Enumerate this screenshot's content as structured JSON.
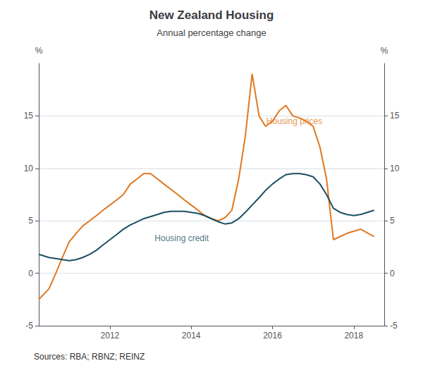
{
  "chart_data": {
    "type": "line",
    "title": "New Zealand Housing",
    "subtitle": "Annual percentage change",
    "y_label": "%",
    "y2_label": "%",
    "source": "Sources: RBA; RBNZ; REINZ",
    "x": [
      2010.25,
      2010.5,
      2010.67,
      2010.83,
      2011.0,
      2011.17,
      2011.33,
      2011.5,
      2011.67,
      2011.83,
      2012.0,
      2012.17,
      2012.33,
      2012.5,
      2012.67,
      2012.83,
      2013.0,
      2013.17,
      2013.33,
      2013.5,
      2013.67,
      2013.83,
      2014.0,
      2014.17,
      2014.33,
      2014.5,
      2014.67,
      2014.83,
      2015.0,
      2015.17,
      2015.33,
      2015.5,
      2015.67,
      2015.83,
      2016.0,
      2016.17,
      2016.33,
      2016.5,
      2016.67,
      2016.83,
      2017.0,
      2017.17,
      2017.33,
      2017.5,
      2017.67,
      2017.83,
      2018.0,
      2018.17,
      2018.5
    ],
    "series": [
      {
        "name": "Housing prices",
        "color": "#E07820",
        "values": [
          -2.5,
          -1.5,
          0.0,
          1.5,
          3.0,
          3.8,
          4.5,
          5.0,
          5.5,
          6.0,
          6.5,
          7.0,
          7.5,
          8.5,
          9.0,
          9.5,
          9.5,
          9.0,
          8.5,
          8.0,
          7.5,
          7.0,
          6.5,
          6.0,
          5.5,
          5.2,
          5.0,
          5.3,
          6.0,
          9.0,
          13.0,
          19.0,
          15.0,
          14.0,
          14.5,
          15.5,
          16.0,
          15.0,
          14.8,
          14.5,
          14.0,
          12.0,
          9.0,
          3.2,
          3.5,
          3.8,
          4.0,
          4.2,
          3.5
        ]
      },
      {
        "name": "Housing credit",
        "color": "#1B4F62",
        "values": [
          1.8,
          1.5,
          1.4,
          1.3,
          1.2,
          1.3,
          1.5,
          1.8,
          2.2,
          2.7,
          3.2,
          3.7,
          4.2,
          4.6,
          4.9,
          5.2,
          5.4,
          5.6,
          5.8,
          5.9,
          5.9,
          5.9,
          5.8,
          5.7,
          5.5,
          5.2,
          4.9,
          4.7,
          4.8,
          5.2,
          5.8,
          6.5,
          7.2,
          7.9,
          8.5,
          9.0,
          9.4,
          9.5,
          9.5,
          9.4,
          9.2,
          8.5,
          7.5,
          6.2,
          5.8,
          5.6,
          5.5,
          5.6,
          6.0
        ]
      }
    ],
    "xlim": [
      2010.25,
      2018.75
    ],
    "xticks": [
      2012,
      2014,
      2016,
      2018
    ],
    "ylim": [
      -5,
      20
    ],
    "yticks": [
      -5,
      0,
      5,
      10,
      15
    ],
    "y2lim": [
      -5,
      20
    ],
    "y2ticks": [
      -5,
      0,
      5,
      10,
      15
    ],
    "grid": true,
    "annotations": [
      {
        "text": "Housing prices",
        "x": 2015.85,
        "y": 14.5,
        "color": "#E07820"
      },
      {
        "text": "Housing credit",
        "x": 2013.1,
        "y": 3.3,
        "color": "#1B4F62"
      }
    ]
  }
}
